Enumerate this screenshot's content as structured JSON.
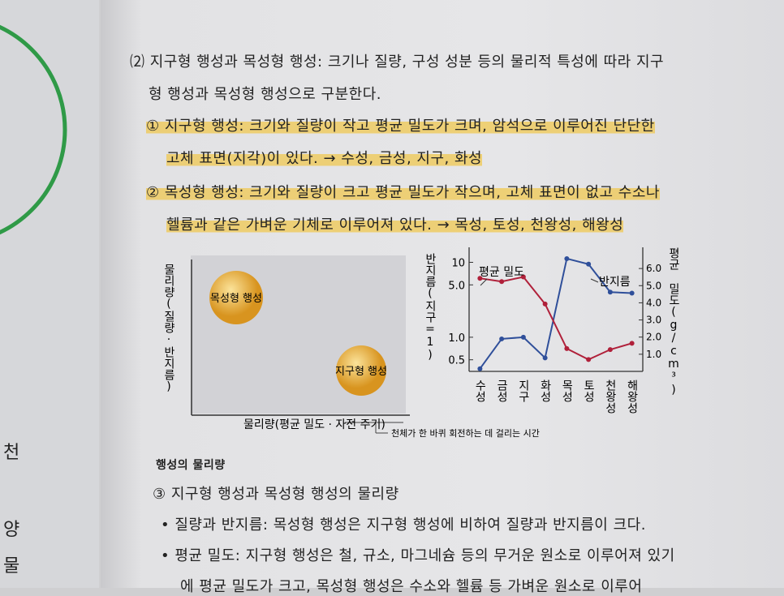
{
  "margin": {
    "fragments": [
      "천",
      "양",
      "물"
    ]
  },
  "intro": {
    "lines": [
      "⑵ 지구형 행성과 목성형 행성: 크기나 질량, 구성 성분 등의 물리적 특성에 따라 지구",
      "형 행성과 목성형 행성으로 구분한다."
    ]
  },
  "items": [
    {
      "lines": [
        "① 지구형 행성: 크기와 질량이 작고 평균 밀도가 크며, 암석으로 이루어진 단단한",
        "고체 표면(지각)이 있다. → 수성, 금성, 지구, 화성"
      ]
    },
    {
      "lines": [
        "② 목성형 행성: 크기와 질량이 크고 평균 밀도가 작으며, 고체 표면이 없고 수소나",
        "헬륨과 같은 가벼운 기체로 이루어져 있다. → 목성, 토성, 천왕성, 해왕성"
      ]
    }
  ],
  "diagram": {
    "y_label": "물리량(질량·반지름)",
    "x_label": "물리량(평균 밀도 · 자전 주기)",
    "bubbles": [
      "목성형 행성",
      "지구형 행성"
    ],
    "note": "천체가 한 바퀴 회전하는 데 걸리는 시간"
  },
  "chart_data": {
    "type": "line",
    "categories": [
      "수성",
      "금성",
      "지구",
      "화성",
      "목성",
      "토성",
      "천왕성",
      "해왕성"
    ],
    "y_label": "반지름(지구=1)",
    "y2_label": "평균 밀도(g/cm³)",
    "ylim": [
      0.35,
      14
    ],
    "log_y": true,
    "yticks": [
      0.5,
      {
        "value": 1,
        "label": "1.0"
      },
      {
        "value": 5,
        "label": "5.0"
      },
      10
    ],
    "y2lim": [
      0,
      7
    ],
    "y2ticks": [
      {
        "value": 1,
        "label": "1.0"
      },
      {
        "value": 2,
        "label": "2.0"
      },
      {
        "value": 3,
        "label": "3.0"
      },
      {
        "value": 4,
        "label": "4.0"
      },
      {
        "value": 5,
        "label": "5.0"
      },
      {
        "value": 6,
        "label": "6.0"
      }
    ],
    "series": [
      {
        "name": "반지름",
        "color": "#2f4f9a",
        "values": [
          0.38,
          0.95,
          1.0,
          0.53,
          11.2,
          9.45,
          4.0,
          3.88
        ]
      },
      {
        "name": "평균 밀도",
        "color": "#b0203a",
        "axis": "y2",
        "values": [
          5.43,
          5.24,
          5.51,
          3.93,
          1.33,
          0.69,
          1.27,
          1.64
        ]
      }
    ]
  },
  "section": {
    "heading": "행성의 물리량",
    "lines": [
      "③ 지구형 행성과 목성형 행성의 물리량",
      "• 질량과 반지름: 목성형 행성은 지구형 행성에 비하여 질량과 반지름이 크다.",
      "• 평균 밀도: 지구형 행성은 철, 규소, 마그네슘 등의 무거운 원소로 이루어져 있기",
      "에 평균 밀도가 크고, 목성형 행성은 수소와 헬륨 등 가벼운 원소로 이루어"
    ]
  }
}
